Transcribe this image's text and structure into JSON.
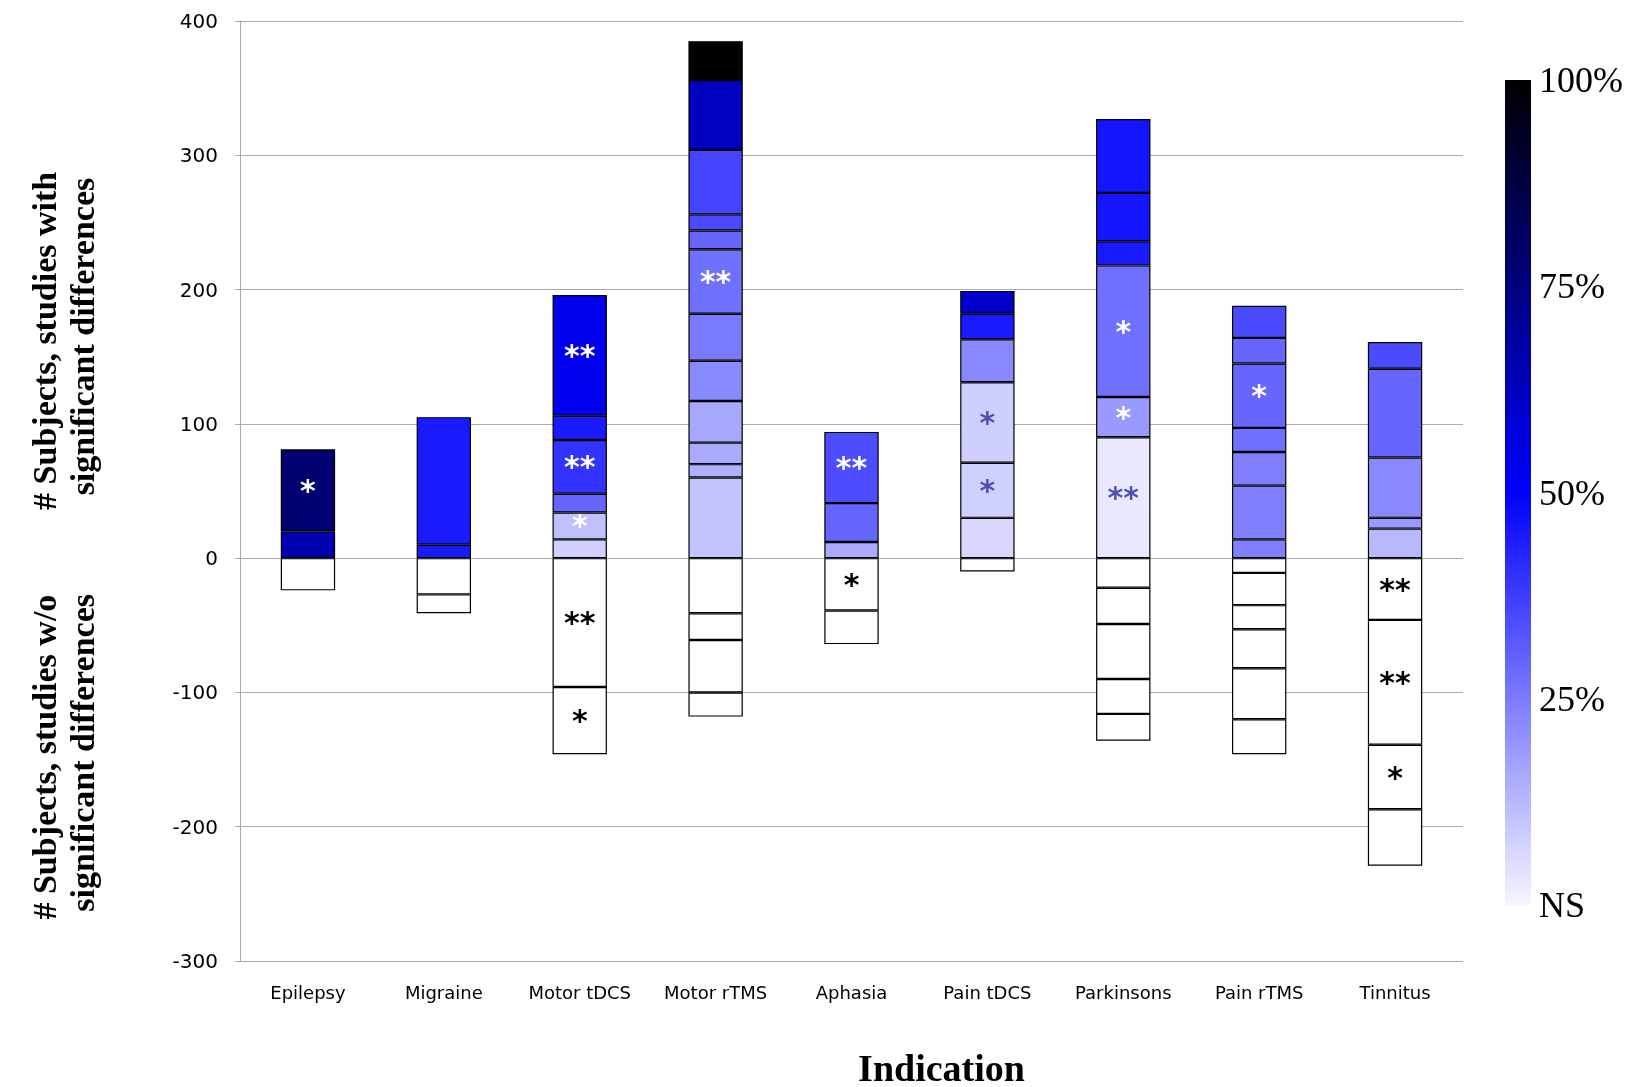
{
  "chart_data": {
    "type": "bar",
    "stacked": true,
    "xlabel": "Indication",
    "ylabel": "# Subjects, studies with significant differences",
    "categories": [
      "Epilepsy",
      "Migraine",
      "Motor tDCS",
      "Motor rTMS",
      "Aphasia",
      "Pain tDCS",
      "Parkinsons",
      "Pain rTMS",
      "Tinnitus"
    ],
    "series": [
      {
        "values": [
          20,
          10,
          14,
          60,
          12,
          30,
          90,
          14,
          22
        ],
        "colors": [
          "#0000b0",
          "#1a1aff",
          "#d0d0ff",
          "#c4c4ff",
          "#aaaaff",
          "#d8d8ff",
          "#e8e8ff",
          "#8080ff",
          "#b8b8ff"
        ],
        "value_labels": [
          null,
          null,
          null,
          null,
          null,
          null,
          "**",
          null,
          null
        ]
      },
      {
        "values": [
          61,
          95,
          20,
          10,
          29,
          41,
          30,
          40,
          8
        ],
        "colors": [
          "#000070",
          "#1a1aff",
          "#c0c0ff",
          "#b0b0ff",
          "#6666ff",
          "#d0d0ff",
          "#9999ff",
          "#8080ff",
          "#9999ff"
        ],
        "value_labels": [
          "*",
          null,
          "*",
          null,
          null,
          "*",
          "*",
          null,
          null
        ]
      },
      {
        "values": [
          null,
          null,
          14,
          16,
          53,
          60,
          98,
          25,
          45
        ],
        "colors": [
          null,
          null,
          "#6666ff",
          "#aaaaff",
          "#4d4dff",
          "#cfcfff",
          "#7070ff",
          "#8080ff",
          "#8888ff"
        ],
        "value_labels": [
          null,
          null,
          null,
          null,
          "**",
          "*",
          "*",
          null,
          null
        ]
      },
      {
        "values": [
          null,
          null,
          40,
          31,
          null,
          32,
          18,
          18,
          66
        ],
        "colors": [
          null,
          null,
          "#3333ff",
          "#a8a8ff",
          null,
          "#8888ff",
          "#1a1aff",
          "#7070ff",
          "#6666ff"
        ],
        "value_labels": [
          null,
          null,
          "**",
          null,
          null,
          null,
          null,
          null,
          null
        ]
      },
      {
        "values": [
          null,
          null,
          18,
          30,
          null,
          19,
          36,
          48,
          20
        ],
        "colors": [
          null,
          null,
          "#1a1aff",
          "#8888ff",
          null,
          "#1a1aff",
          "#1414ff",
          "#6666ff",
          "#4a4aff"
        ],
        "value_labels": [
          null,
          null,
          null,
          null,
          null,
          null,
          null,
          "*",
          null
        ]
      },
      {
        "values": [
          null,
          null,
          90,
          35,
          null,
          17,
          55,
          19,
          null
        ],
        "colors": [
          null,
          null,
          "#0000ee",
          "#7a7aff",
          null,
          "#0000cc",
          "#1414ff",
          "#6666ff",
          null
        ],
        "value_labels": [
          null,
          null,
          "**",
          null,
          null,
          null,
          null,
          null,
          null
        ]
      },
      {
        "values": [
          null,
          null,
          null,
          48,
          null,
          null,
          null,
          24,
          null
        ],
        "colors": [
          null,
          null,
          null,
          "#7070ff",
          null,
          null,
          null,
          "#4a4aff",
          null
        ],
        "value_labels": [
          null,
          null,
          null,
          "**",
          null,
          null,
          null,
          null,
          null
        ]
      },
      {
        "values": [
          null,
          null,
          null,
          14,
          null,
          null,
          null,
          null,
          null
        ],
        "colors": [
          null,
          null,
          null,
          "#6666ff",
          null,
          null,
          null,
          null,
          null
        ]
      },
      {
        "values": [
          null,
          null,
          null,
          12,
          null,
          null,
          null,
          null,
          null
        ],
        "colors": [
          null,
          null,
          null,
          "#4a4aff",
          null,
          null,
          null,
          null,
          null
        ]
      },
      {
        "values": [
          null,
          null,
          null,
          48,
          null,
          null,
          null,
          null,
          null
        ],
        "colors": [
          null,
          null,
          null,
          "#4444ff",
          null,
          null,
          null,
          null,
          null
        ]
      },
      {
        "values": [
          null,
          null,
          null,
          52,
          null,
          null,
          null,
          null,
          null
        ],
        "colors": [
          null,
          null,
          null,
          "#0000c0",
          null,
          null,
          null,
          null,
          null
        ]
      },
      {
        "values": [
          null,
          null,
          null,
          29,
          null,
          null,
          null,
          null,
          null
        ],
        "colors": [
          null,
          null,
          null,
          "#000000",
          null,
          null,
          null,
          null,
          null
        ]
      },
      {
        "color": "#ffffff",
        "values": [
          -24,
          -27,
          -96,
          -41,
          -39,
          -10,
          -22,
          -11,
          -46
        ],
        "value_labels": [
          null,
          null,
          "**",
          null,
          "*",
          null,
          null,
          null,
          "**"
        ]
      },
      {
        "color": "#ffffff",
        "values": [
          null,
          -14,
          -50,
          -20,
          -25,
          null,
          -27,
          -24,
          -93
        ],
        "value_labels": [
          null,
          null,
          "*",
          null,
          null,
          null,
          null,
          null,
          "**"
        ]
      },
      {
        "color": "#ffffff",
        "values": [
          null,
          null,
          null,
          -39,
          null,
          null,
          -41,
          -18,
          -48
        ],
        "value_labels": [
          null,
          null,
          null,
          null,
          null,
          null,
          null,
          null,
          "*"
        ]
      },
      {
        "color": "#ffffff",
        "values": [
          null,
          null,
          null,
          -18,
          null,
          null,
          -26,
          -29,
          -42
        ]
      },
      {
        "color": "#ffffff",
        "values": [
          null,
          null,
          null,
          null,
          null,
          null,
          -20,
          -38,
          null
        ]
      },
      {
        "color": "#ffffff",
        "values": [
          null,
          null,
          null,
          null,
          null,
          null,
          null,
          -26,
          null
        ]
      }
    ],
    "ylim": [
      -300,
      400
    ],
    "yticks": [
      -300,
      -200,
      -100,
      0,
      100,
      200,
      300,
      400
    ],
    "grid": "y",
    "clim": [
      0,
      100
    ],
    "cticks": [
      {
        "value": 0,
        "label": "NS"
      },
      {
        "value": 25,
        "label": "25%"
      },
      {
        "value": 50,
        "label": "50%"
      },
      {
        "value": 75,
        "label": "75%"
      },
      {
        "value": 100,
        "label": "100%"
      }
    ],
    "annotations": [
      "# Subjects, studies w/o significant differences"
    ]
  }
}
